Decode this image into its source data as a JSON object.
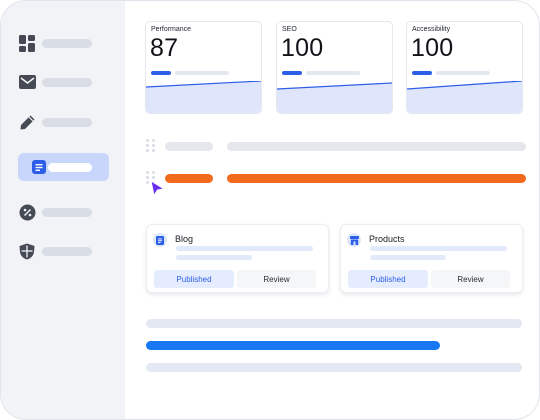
{
  "metrics": [
    {
      "label": "Performance",
      "value": "87"
    },
    {
      "label": "SEO",
      "value": "100"
    },
    {
      "label": "Accessibility",
      "value": "100"
    }
  ],
  "tasks": [
    {
      "title": "Blog",
      "primary": "Published",
      "secondary": "Review",
      "icon": "document-icon"
    },
    {
      "title": "Products",
      "primary": "Published",
      "secondary": "Review",
      "icon": "store-icon"
    }
  ],
  "sidebar": {
    "icons": [
      "dashboard-icon",
      "mail-icon",
      "pencil-icon",
      "document-icon",
      "badge-percent-icon",
      "shield-icon"
    ],
    "active_index": 3
  },
  "colors": {
    "accent": "#2d5ee8",
    "highlight": "#f26b1d",
    "progress": "#1877f2",
    "cursor": "#6a2cf0"
  }
}
